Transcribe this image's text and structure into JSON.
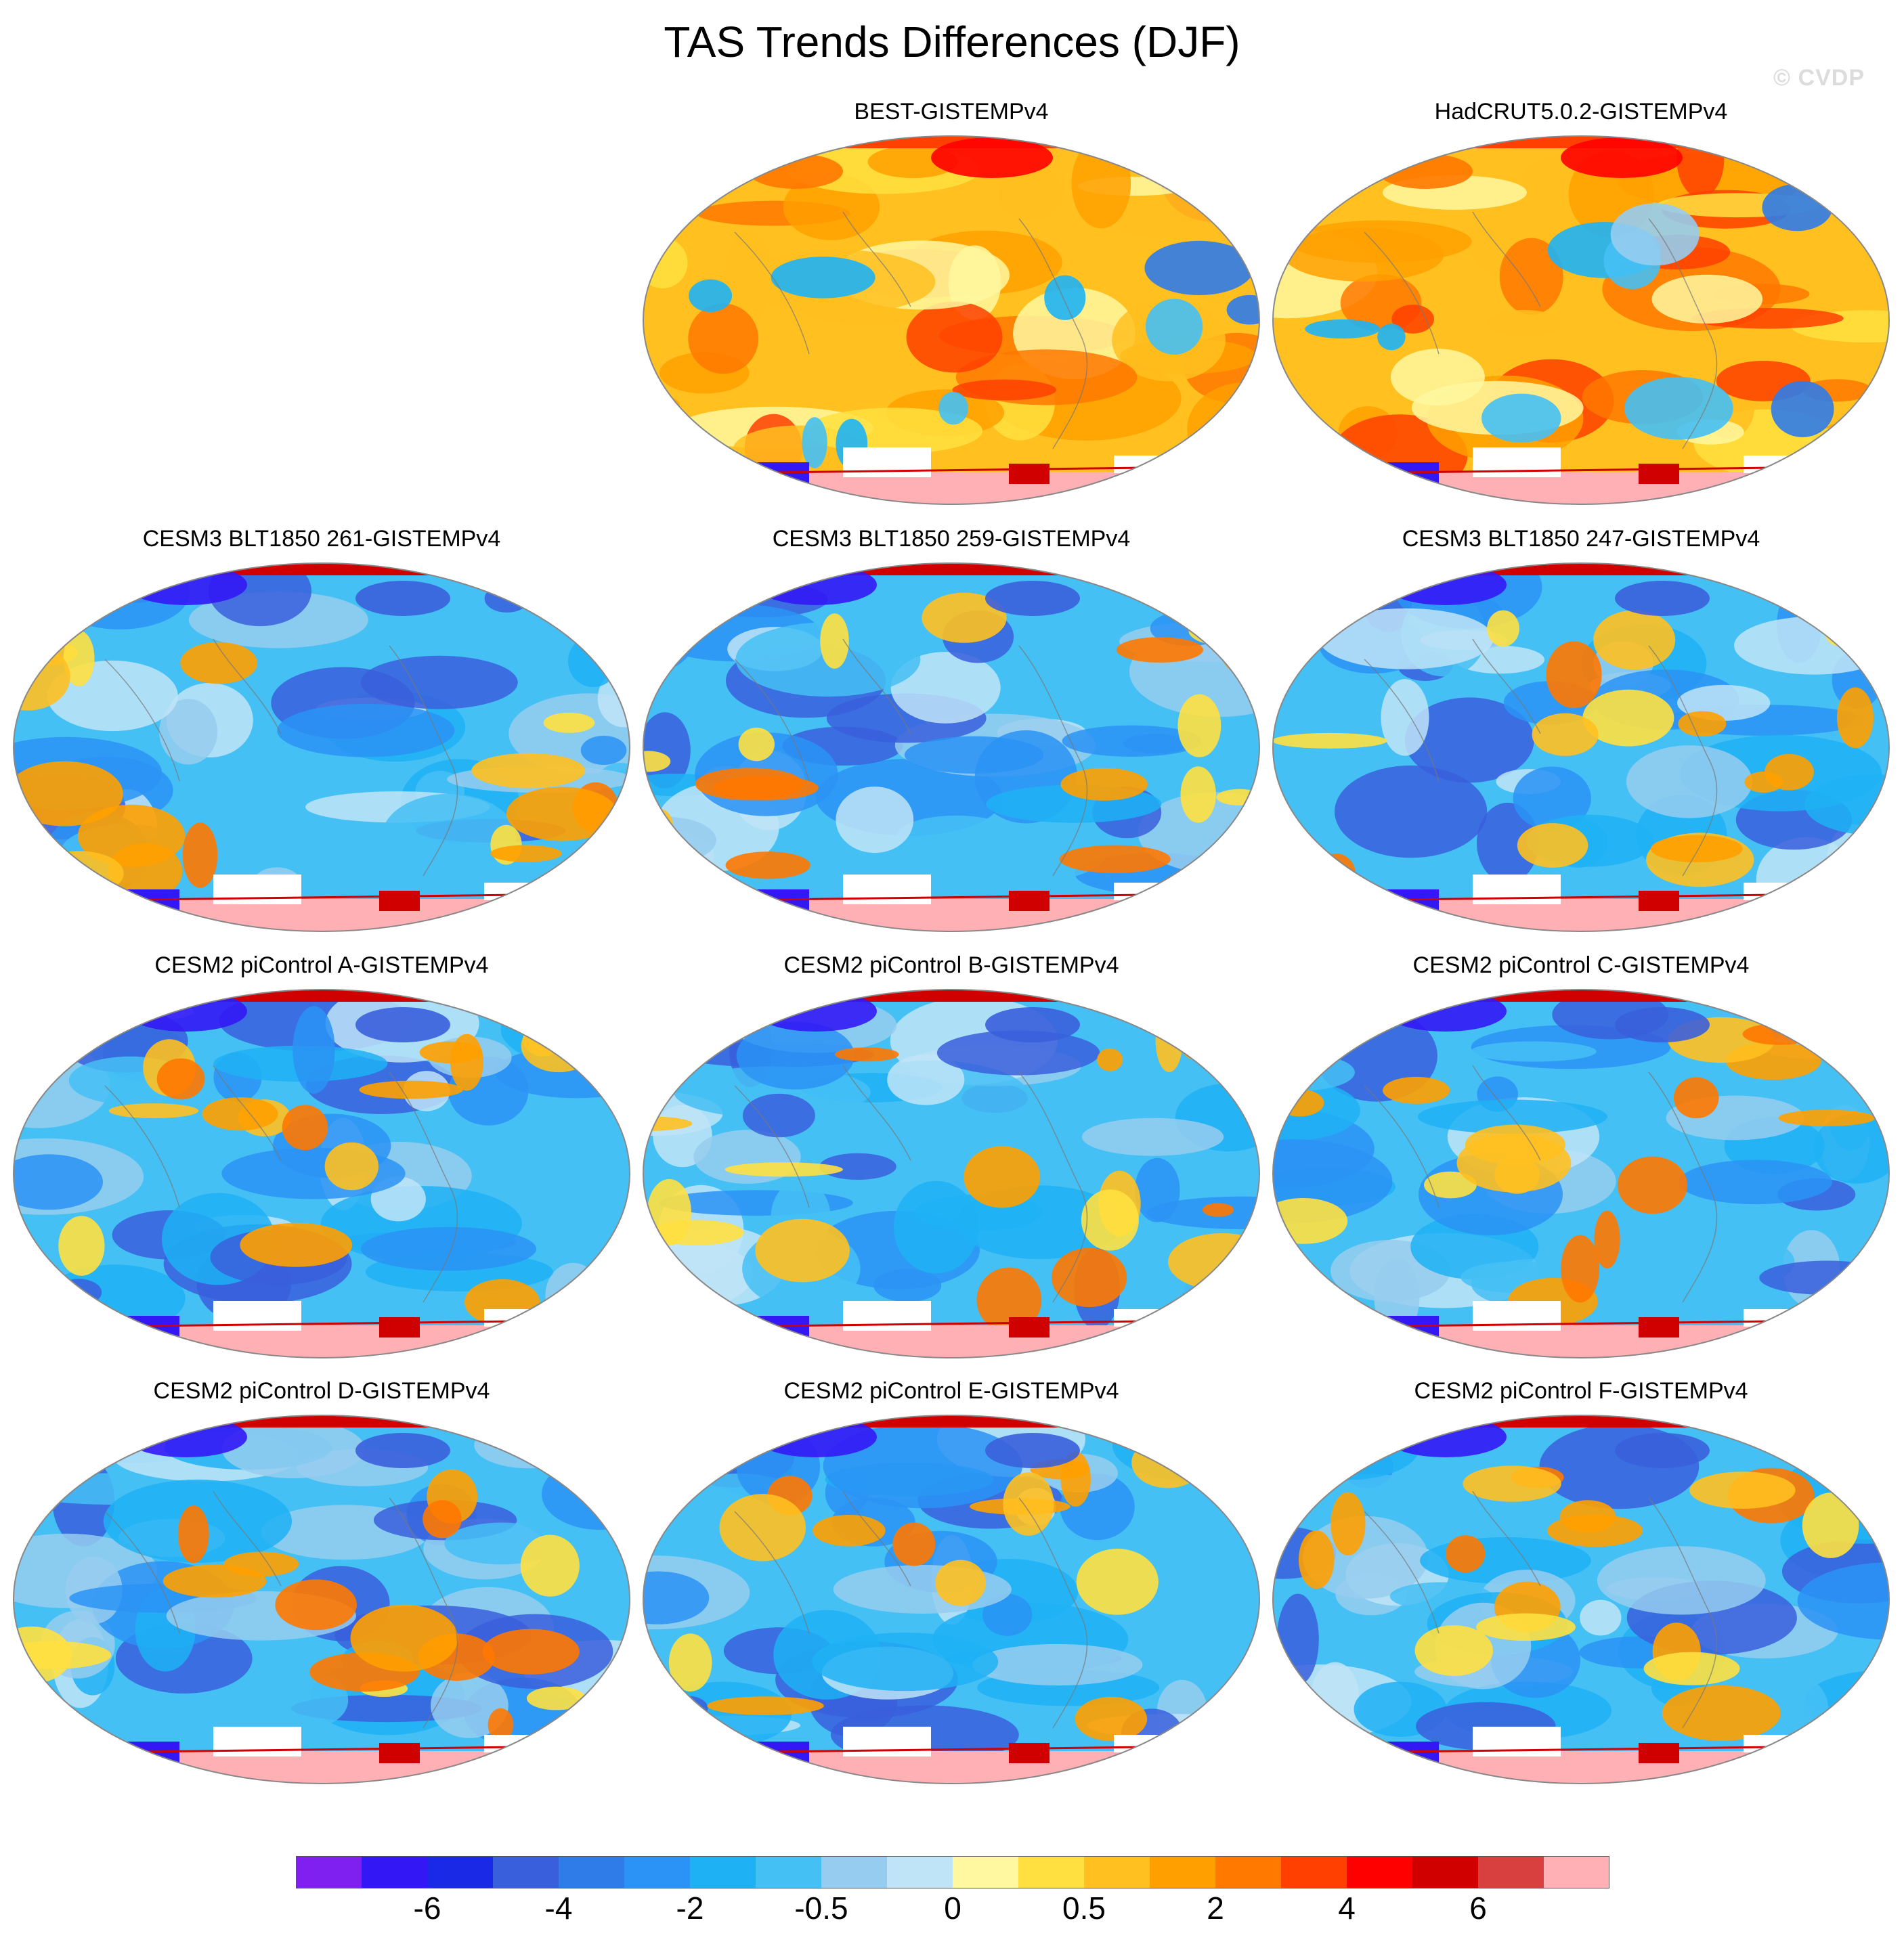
{
  "figure": {
    "title": "TAS Trends Differences (DJF)",
    "watermark": "© CVDP"
  },
  "panels": [
    {
      "title": "BEST-GISTEMPv4",
      "tone": "warm"
    },
    {
      "title": "HadCRUT5.0.2-GISTEMPv4",
      "tone": "warm"
    },
    {
      "title": "CESM3 BLT1850 261-GISTEMPv4",
      "tone": "cool"
    },
    {
      "title": "CESM3 BLT1850 259-GISTEMPv4",
      "tone": "cool"
    },
    {
      "title": "CESM3 BLT1850 247-GISTEMPv4",
      "tone": "cool"
    },
    {
      "title": "CESM2 piControl A-GISTEMPv4",
      "tone": "cool"
    },
    {
      "title": "CESM2 piControl B-GISTEMPv4",
      "tone": "cool"
    },
    {
      "title": "CESM2 piControl C-GISTEMPv4",
      "tone": "cool"
    },
    {
      "title": "CESM2 piControl D-GISTEMPv4",
      "tone": "cool"
    },
    {
      "title": "CESM2 piControl E-GISTEMPv4",
      "tone": "cool"
    },
    {
      "title": "CESM2 piControl F-GISTEMPv4",
      "tone": "cool"
    }
  ],
  "colorbar": {
    "colors": [
      "#7f1ff0",
      "#3318f5",
      "#1a29e6",
      "#3a5fdc",
      "#2f7be8",
      "#2a93f5",
      "#1eb2f5",
      "#45c0f5",
      "#96ccef",
      "#bfe4f7",
      "#fff8a0",
      "#ffe040",
      "#ffc020",
      "#ffa000",
      "#ff7800",
      "#ff4000",
      "#ff0000",
      "#d00000",
      "#d84040",
      "#ffb0b4"
    ],
    "tick_labels": [
      "-6",
      "-4",
      "-2",
      "-0.5",
      "0",
      "0.5",
      "2",
      "4",
      "6"
    ]
  }
}
